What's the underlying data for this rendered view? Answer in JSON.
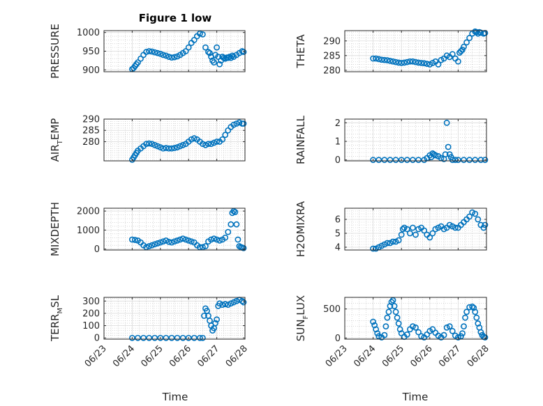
{
  "title": "Figure 1 low",
  "chart_data": [
    {
      "type": "scatter",
      "ylabel": "PRESSURE",
      "ylim": [
        895,
        1005
      ],
      "yticks": [
        {
          "v": 900,
          "label": "900"
        },
        {
          "v": 950,
          "label": "950"
        },
        {
          "v": 1000,
          "label": "1000"
        }
      ],
      "xlim": [
        0,
        5
      ],
      "grid": true,
      "x": [
        1.0,
        1.05,
        1.1,
        1.15,
        1.2,
        1.3,
        1.4,
        1.5,
        1.6,
        1.7,
        1.8,
        1.9,
        2.0,
        2.1,
        2.2,
        2.3,
        2.4,
        2.5,
        2.6,
        2.7,
        2.8,
        2.9,
        3.0,
        3.1,
        3.2,
        3.3,
        3.4,
        3.5,
        3.6,
        3.7,
        3.75,
        3.8,
        3.85,
        3.9,
        3.95,
        4.0,
        4.05,
        4.1,
        4.15,
        4.2,
        4.25,
        4.3,
        4.35,
        4.4,
        4.45,
        4.5,
        4.55,
        4.6,
        4.7,
        4.8,
        4.9,
        4.95
      ],
      "y": [
        902,
        905,
        910,
        915,
        920,
        930,
        940,
        948,
        950,
        949,
        947,
        945,
        943,
        940,
        938,
        935,
        933,
        934,
        936,
        940,
        945,
        950,
        960,
        972,
        980,
        990,
        997,
        995,
        960,
        948,
        945,
        935,
        925,
        920,
        940,
        960,
        935,
        915,
        925,
        935,
        932,
        930,
        933,
        932,
        935,
        932,
        938,
        935,
        940,
        945,
        950,
        948
      ]
    },
    {
      "type": "scatter",
      "ylabel": "THETA",
      "ylim": [
        279.5,
        293.5
      ],
      "yticks": [
        {
          "v": 280,
          "label": "280"
        },
        {
          "v": 285,
          "label": "285"
        },
        {
          "v": 290,
          "label": "290"
        }
      ],
      "xlim": [
        0,
        5
      ],
      "grid": true,
      "x": [
        1.0,
        1.1,
        1.2,
        1.3,
        1.4,
        1.5,
        1.6,
        1.7,
        1.8,
        1.9,
        2.0,
        2.1,
        2.2,
        2.3,
        2.4,
        2.5,
        2.6,
        2.7,
        2.8,
        2.9,
        3.0,
        3.1,
        3.2,
        3.3,
        3.4,
        3.5,
        3.6,
        3.7,
        3.8,
        3.9,
        4.0,
        4.05,
        4.1,
        4.15,
        4.2,
        4.3,
        4.4,
        4.5,
        4.6,
        4.65,
        4.7,
        4.75,
        4.8,
        4.9,
        4.95
      ],
      "y": [
        284,
        284,
        283.8,
        283.6,
        283.5,
        283.4,
        283.2,
        283.0,
        282.8,
        282.6,
        282.5,
        282.6,
        282.8,
        283.0,
        283.0,
        282.8,
        282.6,
        282.5,
        282.4,
        282.2,
        282.0,
        282.5,
        283.0,
        282.0,
        283.5,
        284.0,
        285.0,
        284.5,
        285.5,
        284.0,
        283.0,
        286.0,
        286.5,
        287.0,
        288.0,
        289.5,
        291.0,
        292.5,
        293.2,
        293.0,
        292.5,
        293.0,
        292.8,
        292.5,
        292.7
      ]
    },
    {
      "type": "scatter",
      "ylabel": "AIR_TEMP",
      "ylabel_main": "AIR",
      "ylabel_sub": "T",
      "ylabel_rest": "EMP",
      "ylim": [
        271.5,
        290
      ],
      "yticks": [
        {
          "v": 280,
          "label": "280"
        },
        {
          "v": 285,
          "label": "285"
        },
        {
          "v": 290,
          "label": "290"
        }
      ],
      "xlim": [
        0,
        5
      ],
      "grid": true,
      "x": [
        1.0,
        1.05,
        1.1,
        1.15,
        1.2,
        1.3,
        1.4,
        1.5,
        1.6,
        1.7,
        1.8,
        1.9,
        2.0,
        2.1,
        2.2,
        2.3,
        2.4,
        2.5,
        2.6,
        2.7,
        2.8,
        2.9,
        3.0,
        3.1,
        3.2,
        3.3,
        3.4,
        3.5,
        3.6,
        3.7,
        3.8,
        3.9,
        4.0,
        4.1,
        4.2,
        4.3,
        4.4,
        4.5,
        4.6,
        4.7,
        4.8,
        4.9,
        4.95
      ],
      "y": [
        272,
        273,
        274,
        275,
        276,
        277,
        278,
        279,
        279.2,
        279,
        278.5,
        278,
        277.5,
        277,
        277.2,
        277,
        277,
        277.2,
        277.5,
        278,
        278.5,
        279,
        280,
        281,
        281.5,
        281,
        280,
        279,
        278.5,
        279,
        279,
        279.5,
        280,
        280,
        281,
        283,
        285,
        286.5,
        287.5,
        288,
        288.5,
        288,
        288
      ]
    },
    {
      "type": "scatter",
      "ylabel": "RAINFALL",
      "ylim": [
        -0.05,
        2.2
      ],
      "yticks": [
        {
          "v": 0,
          "label": "0"
        },
        {
          "v": 1,
          "label": "1"
        },
        {
          "v": 2,
          "label": "2"
        }
      ],
      "xlim": [
        0,
        5
      ],
      "grid": true,
      "x": [
        1.0,
        1.2,
        1.4,
        1.6,
        1.8,
        2.0,
        2.2,
        2.4,
        2.6,
        2.8,
        2.9,
        3.0,
        3.05,
        3.1,
        3.15,
        3.2,
        3.3,
        3.4,
        3.5,
        3.55,
        3.6,
        3.65,
        3.7,
        3.75,
        3.8,
        3.9,
        4.0,
        4.2,
        4.4,
        4.6,
        4.8,
        4.95
      ],
      "y": [
        0,
        0,
        0,
        0,
        0,
        0,
        0,
        0,
        0,
        0,
        0.1,
        0.25,
        0.15,
        0.35,
        0.3,
        0.25,
        0.2,
        0.1,
        0.05,
        0.3,
        2.0,
        0.7,
        0.3,
        0.15,
        0,
        0,
        0,
        0,
        0,
        0,
        0,
        0
      ]
    },
    {
      "type": "scatter",
      "ylabel": "MIXDEPTH",
      "ylim": [
        -50,
        2150
      ],
      "yticks": [
        {
          "v": 0,
          "label": "0"
        },
        {
          "v": 1000,
          "label": "1000"
        },
        {
          "v": 2000,
          "label": "2000"
        }
      ],
      "xlim": [
        0,
        5
      ],
      "grid": true,
      "x": [
        1.0,
        1.1,
        1.2,
        1.3,
        1.4,
        1.5,
        1.6,
        1.7,
        1.8,
        1.9,
        2.0,
        2.1,
        2.2,
        2.3,
        2.4,
        2.5,
        2.6,
        2.7,
        2.8,
        2.9,
        3.0,
        3.1,
        3.2,
        3.3,
        3.4,
        3.5,
        3.6,
        3.7,
        3.8,
        3.9,
        4.0,
        4.1,
        4.2,
        4.3,
        4.4,
        4.5,
        4.55,
        4.6,
        4.65,
        4.7,
        4.75,
        4.8,
        4.85,
        4.9,
        4.95
      ],
      "y": [
        500,
        480,
        450,
        350,
        200,
        100,
        150,
        200,
        250,
        300,
        350,
        400,
        450,
        380,
        350,
        400,
        450,
        500,
        550,
        500,
        450,
        400,
        350,
        200,
        100,
        100,
        150,
        400,
        500,
        550,
        500,
        450,
        500,
        600,
        900,
        1300,
        1900,
        2000,
        1950,
        1300,
        500,
        150,
        100,
        80,
        50
      ]
    },
    {
      "type": "scatter",
      "ylabel": "H2OMIXRA",
      "ylim": [
        3.8,
        6.8
      ],
      "yticks": [
        {
          "v": 4,
          "label": "4"
        },
        {
          "v": 5,
          "label": "5"
        },
        {
          "v": 6,
          "label": "6"
        }
      ],
      "xlim": [
        0,
        5
      ],
      "grid": true,
      "x": [
        1.0,
        1.1,
        1.2,
        1.3,
        1.4,
        1.5,
        1.6,
        1.7,
        1.8,
        1.9,
        2.0,
        2.05,
        2.1,
        2.2,
        2.3,
        2.4,
        2.5,
        2.6,
        2.7,
        2.8,
        2.9,
        3.0,
        3.1,
        3.2,
        3.3,
        3.4,
        3.5,
        3.6,
        3.7,
        3.8,
        3.9,
        4.0,
        4.1,
        4.2,
        4.3,
        4.4,
        4.5,
        4.6,
        4.7,
        4.8,
        4.9,
        4.95
      ],
      "y": [
        3.9,
        3.9,
        4.0,
        4.1,
        4.2,
        4.3,
        4.3,
        4.4,
        4.4,
        4.5,
        4.9,
        5.3,
        5.4,
        5.3,
        5.0,
        5.4,
        4.9,
        5.3,
        5.4,
        5.2,
        4.9,
        4.7,
        5.0,
        5.3,
        5.4,
        5.5,
        5.3,
        5.4,
        5.6,
        5.5,
        5.4,
        5.4,
        5.6,
        5.8,
        6.0,
        6.2,
        6.5,
        6.4,
        6.0,
        5.6,
        5.4,
        5.6
      ]
    },
    {
      "type": "scatter",
      "ylabel": "TERR_MSL",
      "ylabel_main": "TERR",
      "ylabel_sub": "M",
      "ylabel_rest": "SL",
      "ylim": [
        -10,
        330
      ],
      "yticks": [
        {
          "v": 0,
          "label": "0"
        },
        {
          "v": 100,
          "label": "100"
        },
        {
          "v": 200,
          "label": "200"
        },
        {
          "v": 300,
          "label": "300"
        }
      ],
      "xlim": [
        0,
        5
      ],
      "grid": true,
      "x": [
        1.0,
        1.2,
        1.4,
        1.6,
        1.8,
        2.0,
        2.2,
        2.4,
        2.6,
        2.8,
        3.0,
        3.2,
        3.4,
        3.5,
        3.55,
        3.6,
        3.65,
        3.7,
        3.75,
        3.8,
        3.85,
        3.9,
        3.95,
        4.0,
        4.05,
        4.1,
        4.2,
        4.3,
        4.4,
        4.5,
        4.6,
        4.7,
        4.8,
        4.9,
        4.95
      ],
      "y": [
        0,
        0,
        0,
        0,
        0,
        0,
        0,
        0,
        0,
        0,
        0,
        0,
        0,
        0,
        180,
        240,
        220,
        180,
        140,
        100,
        60,
        80,
        120,
        150,
        260,
        280,
        270,
        275,
        270,
        280,
        290,
        300,
        310,
        300,
        290
      ]
    },
    {
      "type": "scatter",
      "ylabel": "SUN_FLUX",
      "ylabel_main": "SUN",
      "ylabel_sub": "F",
      "ylabel_rest": "LUX",
      "ylim": [
        -20,
        700
      ],
      "yticks": [
        {
          "v": 0,
          "label": "0"
        },
        {
          "v": 500,
          "label": "500"
        }
      ],
      "xlim": [
        0,
        5
      ],
      "grid": true,
      "x": [
        1.0,
        1.05,
        1.1,
        1.15,
        1.2,
        1.3,
        1.4,
        1.45,
        1.5,
        1.55,
        1.6,
        1.65,
        1.7,
        1.75,
        1.8,
        1.85,
        1.9,
        1.95,
        2.0,
        2.1,
        2.2,
        2.3,
        2.4,
        2.5,
        2.6,
        2.7,
        2.8,
        2.9,
        3.0,
        3.1,
        3.2,
        3.3,
        3.4,
        3.5,
        3.6,
        3.7,
        3.8,
        3.9,
        4.0,
        4.1,
        4.15,
        4.2,
        4.25,
        4.3,
        4.4,
        4.5,
        4.55,
        4.6,
        4.65,
        4.7,
        4.75,
        4.8,
        4.85,
        4.9,
        4.95
      ],
      "y": [
        280,
        220,
        150,
        80,
        30,
        10,
        50,
        200,
        350,
        450,
        550,
        620,
        650,
        550,
        450,
        350,
        250,
        150,
        80,
        20,
        60,
        150,
        200,
        180,
        100,
        30,
        10,
        60,
        120,
        150,
        90,
        40,
        10,
        50,
        180,
        200,
        120,
        40,
        10,
        30,
        80,
        200,
        350,
        450,
        530,
        540,
        520,
        450,
        350,
        250,
        180,
        100,
        50,
        20,
        10
      ]
    }
  ],
  "xticks": [
    "06/23",
    "06/24",
    "06/25",
    "06/26",
    "06/27",
    "06/28"
  ],
  "xlabel": "Time",
  "marker_color": "#0072bd"
}
